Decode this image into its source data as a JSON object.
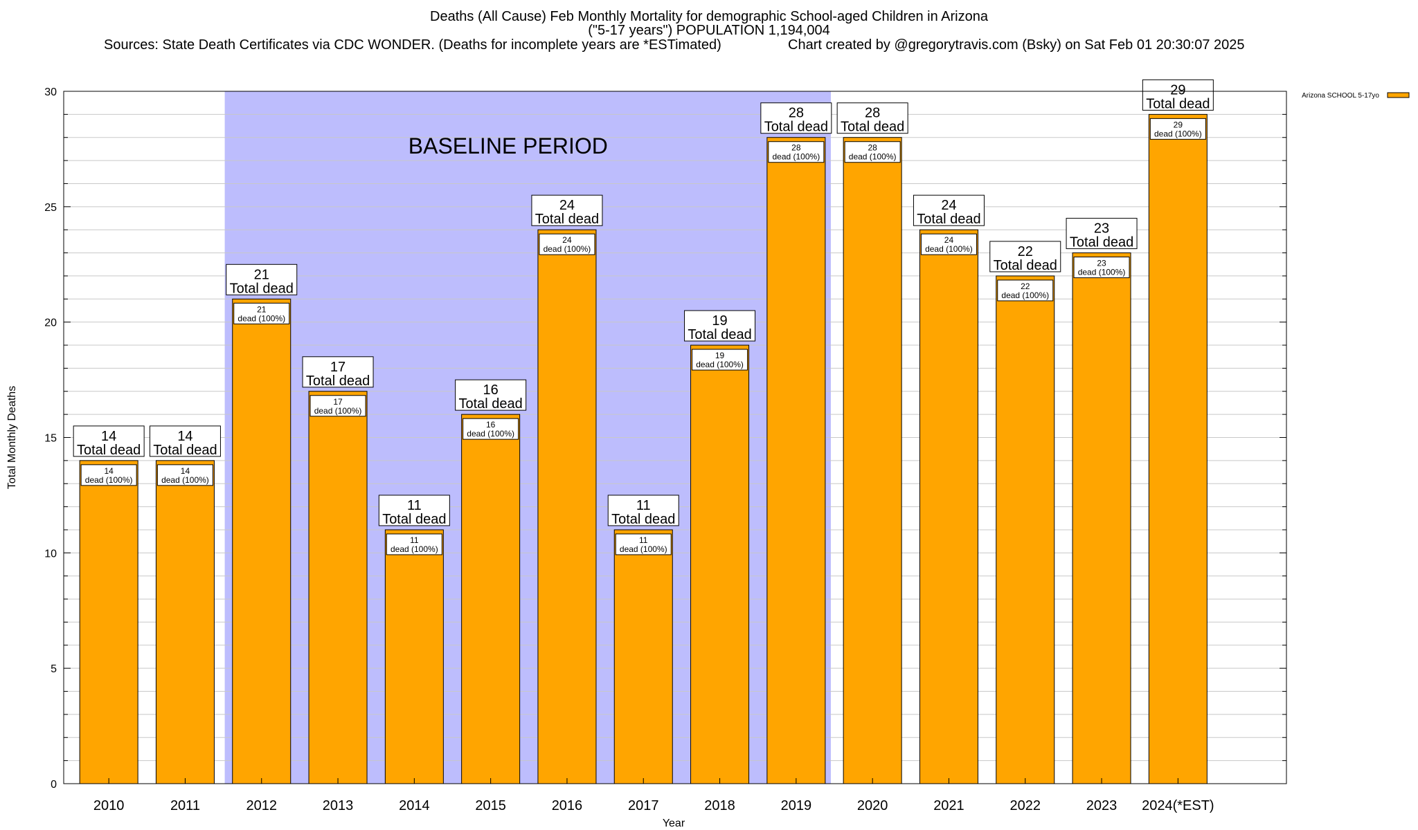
{
  "header": {
    "title_line1": "Deaths (All Cause) Feb Monthly Mortality for demographic School-aged Children in Arizona",
    "title_line2": "(\"5-17 years\") POPULATION 1,194,004",
    "sources": "Sources: State Death Certificates via CDC WONDER. (Deaths for incomplete years are *ESTimated)",
    "credit": "Chart created by @gregorytravis.com (Bsky) on Sat Feb 01 20:30:07 2025"
  },
  "chart_data": {
    "type": "bar",
    "title": "Deaths (All Cause) Feb Monthly Mortality for demographic School-aged Children in Arizona",
    "xlabel": "Year",
    "ylabel": "Total Monthly Deaths",
    "ylim": [
      0,
      30
    ],
    "yticks": [
      0,
      5,
      10,
      15,
      20,
      25,
      30
    ],
    "grid": true,
    "legend_position": "top-right",
    "categories": [
      "2010",
      "2011",
      "2012",
      "2013",
      "2014",
      "2015",
      "2016",
      "2017",
      "2018",
      "2019",
      "2020",
      "2021",
      "2022",
      "2023",
      "2024(*EST)"
    ],
    "series": [
      {
        "name": "Arizona SCHOOL 5-17yo",
        "values": [
          14,
          14,
          21,
          17,
          11,
          16,
          24,
          11,
          19,
          28,
          28,
          24,
          22,
          23,
          29
        ]
      }
    ],
    "total_label_suffix": "Total dead",
    "inner_label_suffix": "dead (100%)",
    "baseline": {
      "label": "BASELINE PERIOD",
      "from_category": "2012",
      "to_category": "2019"
    },
    "colors": {
      "bar": "#ffa500",
      "baseline_band": "#bdbdfd",
      "grid": "#c8c8c8",
      "axis": "#000000"
    }
  }
}
